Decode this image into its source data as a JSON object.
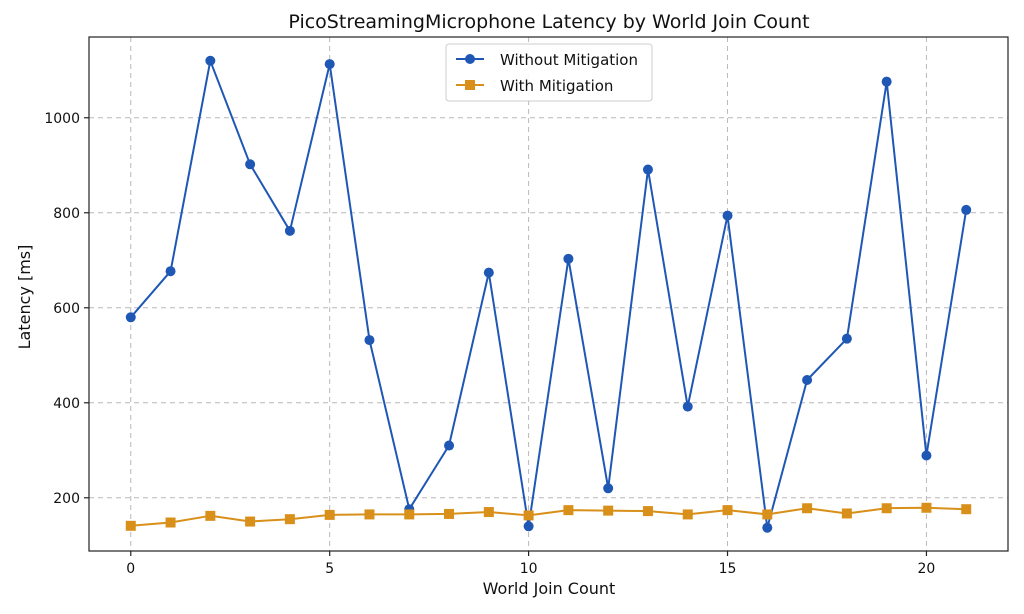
{
  "chart_data": {
    "type": "line",
    "title": "PicoStreamingMicrophone Latency by World Join Count",
    "xlabel": "World Join Count",
    "ylabel": "Latency [ms]",
    "xlim": [
      -1.05,
      22.05
    ],
    "ylim": [
      88,
      1170
    ],
    "xticks": [
      0,
      5,
      10,
      15,
      20
    ],
    "yticks": [
      200,
      400,
      600,
      800,
      1000
    ],
    "grid": true,
    "legend_position": "top-center",
    "x": [
      0,
      1,
      2,
      3,
      4,
      5,
      6,
      7,
      8,
      9,
      10,
      11,
      12,
      13,
      14,
      15,
      16,
      17,
      18,
      19,
      20,
      21
    ],
    "series": [
      {
        "name": "Without Mitigation",
        "color": "#1f57b5",
        "marker": "circle",
        "values": [
          580,
          677,
          1120,
          902,
          762,
          1113,
          532,
          176,
          310,
          674,
          140,
          703,
          220,
          891,
          392,
          794,
          137,
          448,
          535,
          1076,
          289,
          806
        ]
      },
      {
        "name": "With Mitigation",
        "color": "#d9901a",
        "marker": "square",
        "values": [
          141,
          148,
          162,
          150,
          155,
          164,
          165,
          165,
          166,
          170,
          163,
          174,
          173,
          172,
          165,
          174,
          165,
          178,
          167,
          178,
          179,
          176
        ]
      }
    ]
  }
}
